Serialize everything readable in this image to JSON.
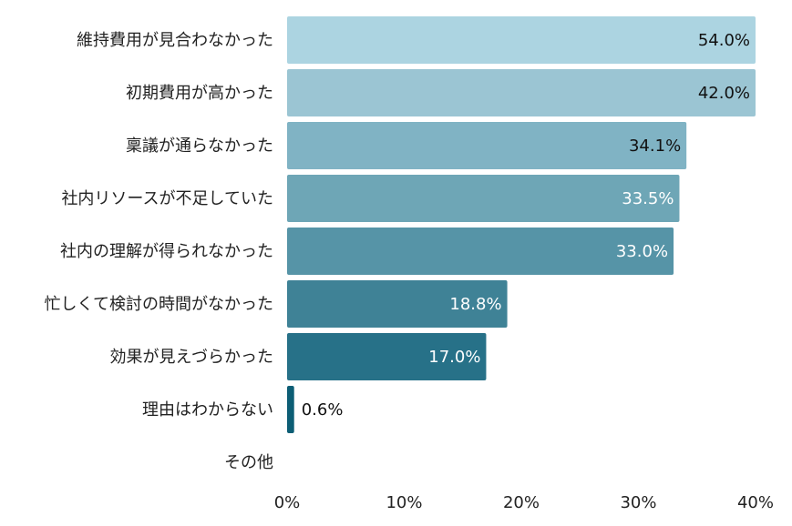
{
  "chart_data": {
    "type": "bar",
    "orientation": "horizontal",
    "categories": [
      "維持費用が見合わなかった",
      "初期費用が高かった",
      "稟議が通らなかった",
      "社内リソースが不足していた",
      "社内の理解が得られなかった",
      "忙しくて検討の時間がなかった",
      "効果が見えづらかった",
      "理由はわからない",
      "その他"
    ],
    "values": [
      54.0,
      42.0,
      34.1,
      33.5,
      33.0,
      18.8,
      17.0,
      0.6,
      null
    ],
    "value_labels": [
      "54.0%",
      "42.0%",
      "34.1%",
      "33.5%",
      "33.0%",
      "18.8%",
      "17.0%",
      "0.6%",
      ""
    ],
    "bar_colors": [
      "#acd4e1",
      "#9bc5d3",
      "#80b3c4",
      "#6ea6b6",
      "#5694a7",
      "#3f8296",
      "#277188",
      "#0d5e75",
      "#0d5e75"
    ],
    "label_colors": [
      "#111111",
      "#111111",
      "#111111",
      "#ffffff",
      "#ffffff",
      "#ffffff",
      "#ffffff",
      "#111111",
      "#111111"
    ],
    "xlim": [
      0,
      40
    ],
    "xticks": [
      "0%",
      "10%",
      "20%",
      "30%",
      "40%"
    ],
    "grid": false,
    "legend": "none"
  }
}
